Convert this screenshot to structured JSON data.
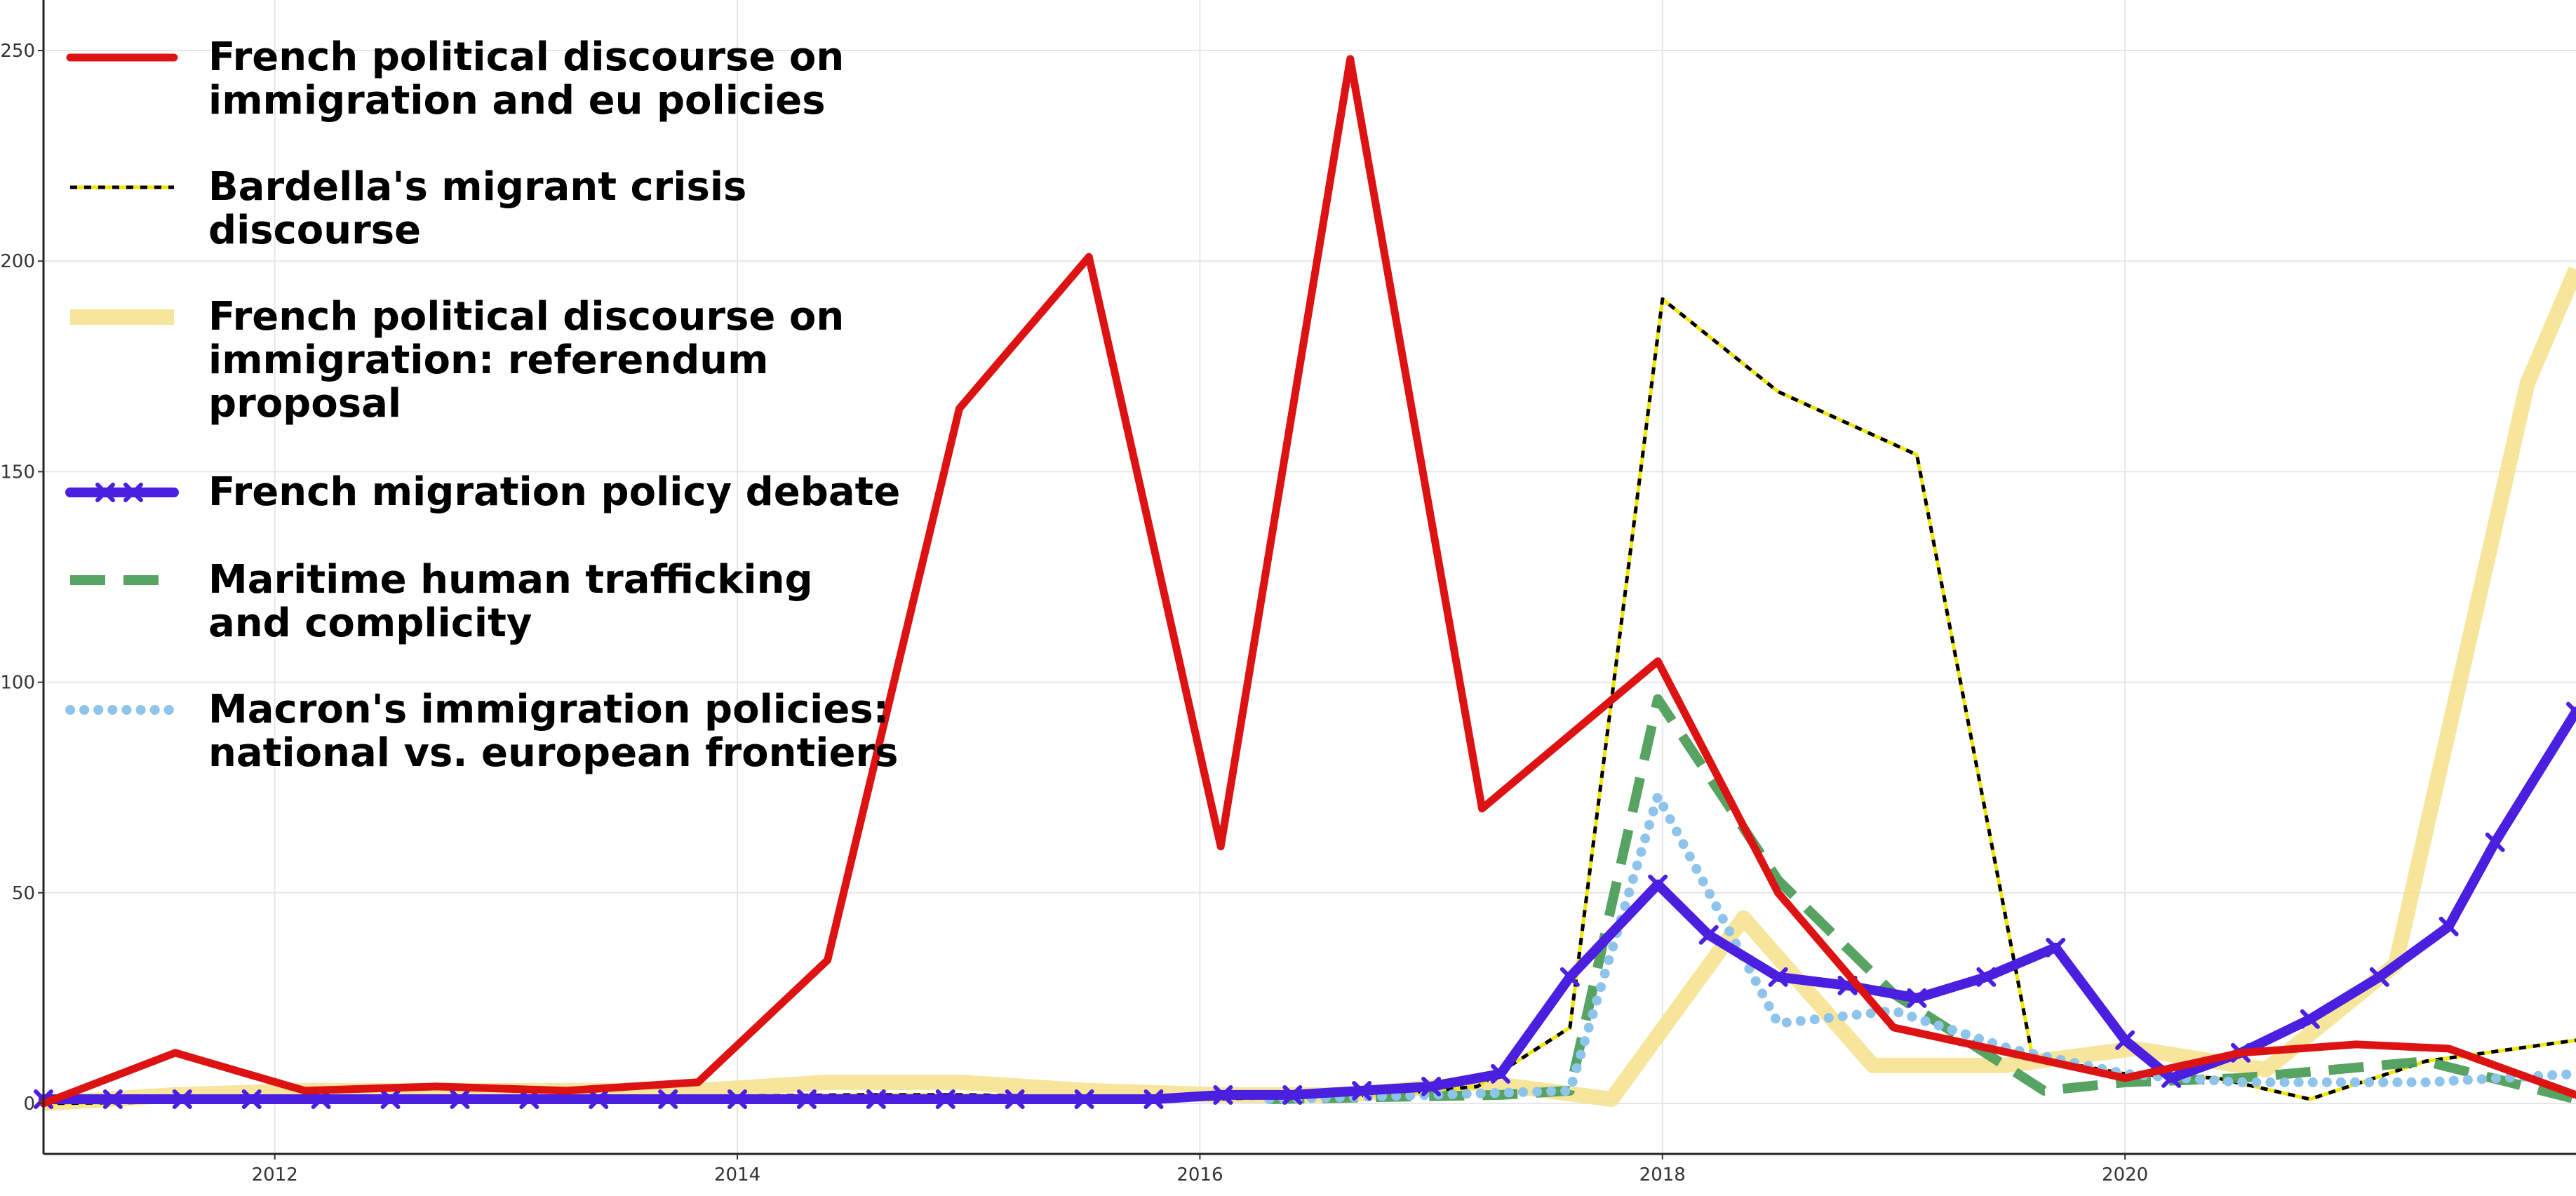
{
  "chart_data": {
    "type": "line",
    "title": "",
    "xlabel": "",
    "ylabel": "",
    "xlim": [
      2011.0,
      2021.95
    ],
    "ylim": [
      -12,
      262
    ],
    "grid": true,
    "legend_position": "top-left",
    "x_ticks": [
      {
        "value": 2012,
        "label": "2012"
      },
      {
        "value": 2014,
        "label": "2014"
      },
      {
        "value": 2016,
        "label": "2016"
      },
      {
        "value": 2018,
        "label": "2018"
      },
      {
        "value": 2020,
        "label": "2020"
      }
    ],
    "y_ticks": [
      {
        "value": 0,
        "label": "0"
      },
      {
        "value": 50,
        "label": "50"
      },
      {
        "value": 100,
        "label": "100"
      },
      {
        "value": 150,
        "label": "150"
      },
      {
        "value": 200,
        "label": "200"
      },
      {
        "value": 250,
        "label": "250"
      }
    ],
    "series": [
      {
        "name": "French political discourse on immigration: referendum proposal",
        "legend_lines": [
          "French political discourse on",
          "immigration: referendum",
          "proposal"
        ],
        "color": "#F5E08A",
        "style": "thick",
        "x": [
          2011.0,
          2011.57,
          2012.13,
          2012.7,
          2013.26,
          2013.83,
          2014.39,
          2014.96,
          2015.52,
          2016.09,
          2016.65,
          2017.22,
          2017.78,
          2018.35,
          2018.91,
          2019.48,
          2020.04,
          2020.61,
          2021.17,
          2021.74
        ],
        "y": [
          0,
          2,
          3,
          3,
          3,
          3,
          5,
          5,
          3,
          2,
          2,
          5,
          1,
          44,
          9,
          9,
          13,
          8,
          33,
          171
        ],
        "y_end": 198
      },
      {
        "name": "Bardella's migrant crisis discourse",
        "legend_lines": [
          "Bardella's migrant crisis",
          "discourse"
        ],
        "color": "#000000",
        "style": "hazard",
        "x": [
          2011.0,
          2014.5,
          2015.0,
          2016.0,
          2016.8,
          2017.2,
          2017.6,
          2018.0,
          2018.5,
          2019.1,
          2019.6,
          2020.0,
          2020.4,
          2020.8,
          2021.3,
          2021.95
        ],
        "y": [
          0,
          2,
          2,
          1,
          2,
          4,
          18,
          191,
          169,
          154,
          11,
          7,
          6,
          1,
          10,
          15
        ]
      },
      {
        "name": "Maritime human trafficking and complicity",
        "legend_lines": [
          "Maritime human trafficking",
          "and complicity"
        ],
        "color": "#4E9E5A",
        "style": "dashed",
        "x": [
          2016.3,
          2017.3,
          2017.6,
          2017.98,
          2018.5,
          2019.0,
          2019.65,
          2020.0,
          2020.5,
          2021.3,
          2021.95
        ],
        "y": [
          1,
          2,
          3,
          96,
          53,
          26,
          3,
          5,
          6,
          10,
          1
        ]
      },
      {
        "name": "Macron's immigration policies: national vs. european frontiers",
        "legend_lines": [
          "Macron's immigration policies:",
          "national vs. european frontiers"
        ],
        "color": "#8EC4EC",
        "style": "dotted",
        "x": [
          2016.3,
          2017.0,
          2017.6,
          2017.98,
          2018.5,
          2019.0,
          2019.5,
          2020.0,
          2020.5,
          2021.3,
          2021.95
        ],
        "y": [
          1,
          2,
          3,
          73,
          19,
          22,
          13,
          7,
          5,
          5,
          7
        ]
      },
      {
        "name": "French migration policy debate",
        "legend_lines": [
          "French migration policy debate"
        ],
        "color": "#4A1FE0",
        "style": "marker-x",
        "x": [
          2011.0,
          2011.3,
          2011.6,
          2011.9,
          2012.2,
          2012.5,
          2012.8,
          2013.1,
          2013.4,
          2013.7,
          2014.0,
          2014.3,
          2014.6,
          2014.9,
          2015.2,
          2015.5,
          2015.8,
          2016.1,
          2016.4,
          2016.7,
          2017.0,
          2017.3,
          2017.6,
          2017.98,
          2018.2,
          2018.5,
          2018.8,
          2019.1,
          2019.4,
          2019.7,
          2020.0,
          2020.2,
          2020.5,
          2020.8,
          2021.1,
          2021.4,
          2021.6,
          2021.95
        ],
        "y": [
          1,
          1,
          1,
          1,
          1,
          1,
          1,
          1,
          1,
          1,
          1,
          1,
          1,
          1,
          1,
          1,
          1,
          2,
          2,
          3,
          4,
          7,
          30,
          52,
          40,
          30,
          28,
          25,
          30,
          37,
          15,
          6,
          12,
          20,
          30,
          42,
          62,
          93
        ]
      },
      {
        "name": "French political discourse on immigration and eu policies",
        "legend_lines": [
          "French political discourse on",
          "immigration and eu policies"
        ],
        "color": "#DD1212",
        "style": "solid",
        "x": [
          2011.0,
          2011.57,
          2012.13,
          2012.7,
          2013.26,
          2013.83,
          2014.39,
          2014.96,
          2015.52,
          2016.09,
          2016.65,
          2017.22,
          2017.98,
          2018.5,
          2019.0,
          2019.5,
          2020.0,
          2020.5,
          2021.0,
          2021.4,
          2021.95
        ],
        "y": [
          0,
          12,
          3,
          4,
          3,
          5,
          34,
          165,
          201,
          61,
          248,
          70,
          105,
          50,
          18,
          12,
          6,
          12,
          14,
          13,
          2
        ]
      }
    ],
    "legend_order": [
      "French political discourse on immigration and eu policies",
      "Bardella's migrant crisis discourse",
      "French political discourse on immigration: referendum proposal",
      "French migration policy debate",
      "Maritime human trafficking and complicity",
      "Macron's immigration policies: national vs. european frontiers"
    ]
  }
}
